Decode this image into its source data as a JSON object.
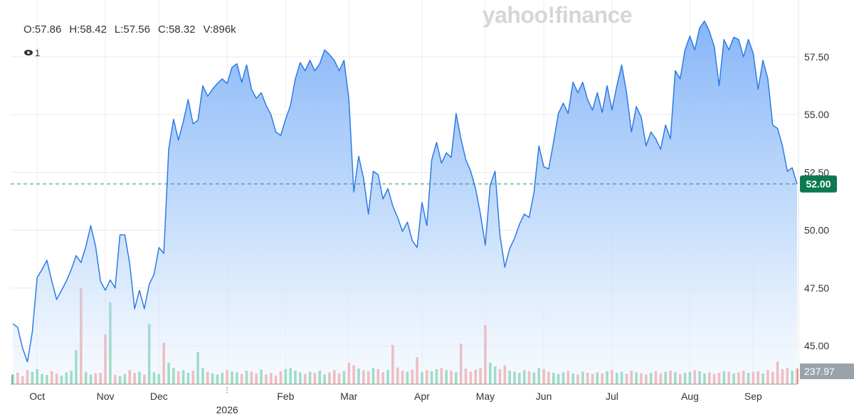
{
  "chart_data": {
    "type": "line",
    "watermark": "yahoo!finance",
    "ohlc": [
      "O:57.86",
      "H:58.42",
      "L:57.56",
      "C:58.32",
      "V:896k"
    ],
    "indicator_count": "1",
    "categories": [
      null,
      null,
      null,
      null,
      null,
      "Oct",
      null,
      null,
      null,
      null,
      null,
      null,
      null,
      null,
      null,
      null,
      null,
      null,
      null,
      "Nov",
      null,
      null,
      null,
      null,
      null,
      null,
      null,
      null,
      null,
      null,
      "Dec",
      null,
      null,
      null,
      null,
      null,
      null,
      null,
      null,
      null,
      null,
      null,
      null,
      null,
      "2026",
      null,
      null,
      null,
      null,
      null,
      null,
      null,
      null,
      null,
      null,
      null,
      "Feb",
      null,
      null,
      null,
      null,
      null,
      null,
      null,
      null,
      null,
      null,
      null,
      null,
      "Mar",
      null,
      null,
      null,
      null,
      null,
      null,
      null,
      null,
      null,
      null,
      null,
      null,
      null,
      null,
      "Apr",
      null,
      null,
      null,
      null,
      null,
      null,
      null,
      null,
      null,
      null,
      null,
      null,
      "May",
      null,
      null,
      null,
      null,
      null,
      null,
      null,
      null,
      null,
      null,
      null,
      "Jun",
      null,
      null,
      null,
      null,
      null,
      null,
      null,
      null,
      null,
      null,
      null,
      null,
      null,
      "Jul",
      null,
      null,
      null,
      null,
      null,
      null,
      null,
      null,
      null,
      null,
      null,
      null,
      null,
      null,
      null,
      "Aug",
      null,
      null,
      null,
      null,
      null,
      null,
      null,
      null,
      null,
      null,
      null,
      null,
      "Sep",
      null,
      null,
      null,
      null,
      null,
      null,
      null,
      null,
      null
    ],
    "values": [
      45.95,
      45.8,
      44.9,
      44.3,
      45.6,
      47.95,
      48.3,
      48.7,
      47.8,
      47.0,
      47.4,
      47.8,
      48.3,
      48.9,
      48.6,
      49.3,
      50.2,
      49.3,
      47.8,
      47.4,
      47.85,
      47.5,
      49.8,
      49.8,
      48.55,
      46.6,
      47.4,
      46.6,
      47.65,
      48.1,
      49.25,
      49.0,
      53.5,
      54.8,
      53.9,
      54.7,
      55.65,
      54.6,
      54.75,
      56.25,
      55.8,
      56.1,
      56.35,
      56.55,
      56.35,
      57.05,
      57.2,
      56.4,
      57.15,
      56.1,
      55.7,
      55.95,
      55.4,
      55.0,
      54.25,
      54.1,
      54.8,
      55.4,
      56.55,
      57.25,
      56.9,
      57.35,
      56.9,
      57.2,
      57.8,
      57.6,
      57.35,
      56.9,
      57.35,
      55.65,
      51.65,
      53.2,
      52.25,
      50.7,
      52.55,
      52.4,
      51.35,
      51.8,
      51.05,
      50.55,
      49.95,
      50.35,
      49.55,
      49.25,
      51.2,
      50.2,
      53.05,
      53.8,
      52.9,
      53.35,
      53.15,
      55.05,
      53.95,
      53.05,
      52.55,
      51.8,
      50.7,
      49.35,
      51.95,
      52.55,
      49.8,
      48.4,
      49.2,
      49.65,
      50.25,
      50.7,
      50.55,
      51.65,
      53.65,
      52.75,
      52.65,
      53.8,
      55.05,
      55.5,
      55.05,
      56.4,
      55.95,
      56.4,
      55.65,
      55.2,
      55.95,
      55.1,
      56.25,
      55.2,
      56.25,
      57.15,
      55.95,
      54.25,
      55.35,
      54.9,
      53.65,
      54.25,
      53.95,
      53.5,
      54.55,
      53.95,
      56.9,
      56.55,
      57.8,
      58.4,
      57.8,
      58.75,
      59.05,
      58.6,
      57.95,
      56.25,
      58.25,
      57.8,
      58.35,
      58.25,
      57.5,
      58.25,
      57.65,
      56.1,
      57.35,
      56.55,
      54.55,
      54.4,
      53.65,
      52.55,
      52.7,
      52.0
    ],
    "color": "#2d7be6",
    "ylim": [
      43.34,
      59.96
    ],
    "yticks": [
      {
        "value": 45,
        "label": "45.00"
      },
      {
        "value": 47.5,
        "label": "47.50"
      },
      {
        "value": 50,
        "label": "50.00"
      },
      {
        "value": 52.5,
        "label": "52.50"
      },
      {
        "value": 55,
        "label": "55.00"
      },
      {
        "value": 57.5,
        "label": "57.50"
      }
    ],
    "grid": true,
    "last_value": {
      "value": 52,
      "label": "52.00"
    },
    "last_color": "#0b7a50",
    "volume": {
      "axis": "y2",
      "up_color": "#4cc38f",
      "down_color": "#f0847e",
      "values": [
        180,
        210,
        150,
        260,
        230,
        280,
        190,
        170,
        240,
        200,
        160,
        220,
        250,
        635,
        1785,
        230,
        180,
        200,
        210,
        925,
        1520,
        170,
        150,
        190,
        260,
        210,
        230,
        180,
        1125,
        220,
        190,
        770,
        400,
        300,
        240,
        260,
        210,
        250,
        595,
        300,
        230,
        200,
        180,
        210,
        260,
        240,
        220,
        190,
        250,
        230,
        200,
        270,
        180,
        210,
        160,
        240,
        280,
        300,
        250,
        220,
        190,
        230,
        210,
        250,
        180,
        220,
        260,
        200,
        240,
        400,
        350,
        290,
        260,
        240,
        300,
        280,
        220,
        260,
        727,
        310,
        250,
        230,
        270,
        500,
        220,
        260,
        240,
        280,
        300,
        260,
        250,
        220,
        755,
        290,
        230,
        270,
        300,
        1100,
        400,
        330,
        280,
        350,
        250,
        230,
        210,
        260,
        240,
        220,
        300,
        280,
        230,
        210,
        190,
        220,
        250,
        200,
        180,
        230,
        210,
        190,
        220,
        200,
        240,
        260,
        210,
        230,
        190,
        250,
        220,
        200,
        180,
        210,
        240,
        200,
        230,
        250,
        220,
        190,
        210,
        230,
        260,
        240,
        200,
        220,
        190,
        210,
        240,
        230,
        200,
        220,
        250,
        210,
        230,
        240,
        200,
        260,
        230,
        420,
        280,
        300,
        250,
        290
      ]
    },
    "y2lim": [
      0,
      7140
    ],
    "y2ticks": [
      237.97
    ]
  }
}
